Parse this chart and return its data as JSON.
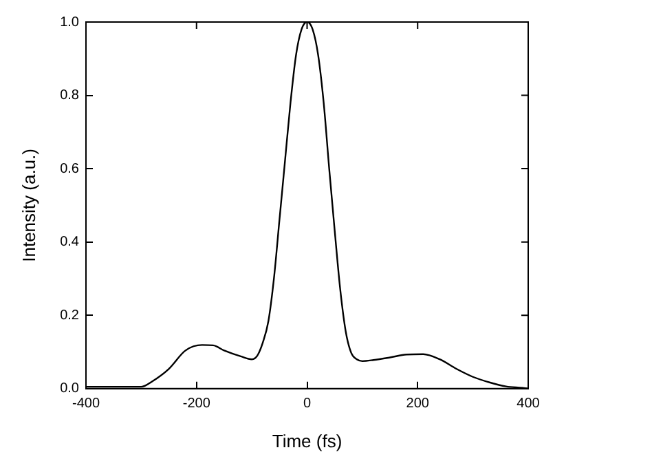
{
  "chart_data": {
    "type": "line",
    "xlabel": "Time (fs)",
    "ylabel": "Intensity (a.u.)",
    "x": [
      -400,
      -300,
      -280,
      -250,
      -220,
      -190,
      -170,
      -150,
      -120,
      -100,
      -90,
      -80,
      -70,
      -60,
      -50,
      -40,
      -30,
      -20,
      -10,
      0,
      10,
      20,
      30,
      40,
      50,
      60,
      70,
      80,
      90,
      100,
      120,
      150,
      180,
      210,
      240,
      270,
      300,
      330,
      360,
      390,
      400
    ],
    "series": [
      {
        "color": "#000000",
        "values": [
          0.005,
          0.005,
          0.02,
          0.054,
          0.104,
          0.119,
          0.118,
          0.104,
          0.088,
          0.08,
          0.09,
          0.126,
          0.184,
          0.3,
          0.46,
          0.62,
          0.78,
          0.91,
          0.98,
          1.0,
          0.98,
          0.91,
          0.78,
          0.6,
          0.43,
          0.27,
          0.155,
          0.097,
          0.08,
          0.075,
          0.078,
          0.085,
          0.093,
          0.094,
          0.08,
          0.054,
          0.032,
          0.017,
          0.006,
          0.002,
          0.0
        ]
      }
    ],
    "xlim": [
      -400,
      400
    ],
    "xticks": [
      -400,
      -200,
      0,
      200,
      400
    ],
    "ylim": [
      0,
      1
    ],
    "yticks": [
      {
        "value": 0,
        "label": "0.0"
      },
      {
        "value": 0.2,
        "label": "0.2"
      },
      {
        "value": 0.4,
        "label": "0.4"
      },
      {
        "value": 0.6,
        "label": "0.6"
      },
      {
        "value": 0.8,
        "label": "0.8"
      },
      {
        "value": 1,
        "label": "1.0"
      }
    ],
    "grid": false,
    "legend": false,
    "marker": "none",
    "line_style": "solid"
  }
}
